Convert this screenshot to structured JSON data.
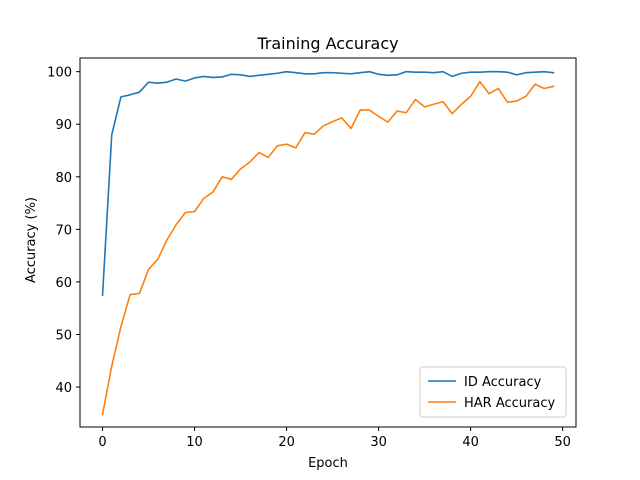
{
  "chart_data": {
    "type": "line",
    "title": "Training Accuracy",
    "xlabel": "Epoch",
    "ylabel": "Accuracy (%)",
    "xlim": [
      -2.45,
      51.45
    ],
    "ylim": [
      32.4,
      102.6
    ],
    "xticks": [
      0,
      10,
      20,
      30,
      40,
      50
    ],
    "yticks": [
      40,
      50,
      60,
      70,
      80,
      90,
      100
    ],
    "grid": false,
    "legend": "lower-right",
    "x": [
      0,
      1,
      2,
      3,
      4,
      5,
      6,
      7,
      8,
      9,
      10,
      11,
      12,
      13,
      14,
      15,
      16,
      17,
      18,
      19,
      20,
      21,
      22,
      23,
      24,
      25,
      26,
      27,
      28,
      29,
      30,
      31,
      32,
      33,
      34,
      35,
      36,
      37,
      38,
      39,
      40,
      41,
      42,
      43,
      44,
      45,
      46,
      47,
      48,
      49
    ],
    "series": [
      {
        "name": "ID Accuracy",
        "color": "#1f77b4",
        "values": [
          57.5,
          88.0,
          95.2,
          95.6,
          96.1,
          98.0,
          97.8,
          98.0,
          98.6,
          98.2,
          98.8,
          99.1,
          98.9,
          99.0,
          99.5,
          99.4,
          99.1,
          99.3,
          99.5,
          99.7,
          100.0,
          99.8,
          99.6,
          99.6,
          99.8,
          99.8,
          99.7,
          99.6,
          99.8,
          100.0,
          99.5,
          99.3,
          99.4,
          100.0,
          99.9,
          99.9,
          99.8,
          100.0,
          99.1,
          99.7,
          99.9,
          99.9,
          100.0,
          100.0,
          99.9,
          99.4,
          99.8,
          99.9,
          100.0,
          99.8
        ]
      },
      {
        "name": "HAR Accuracy",
        "color": "#ff7f0e",
        "values": [
          34.8,
          44.0,
          51.5,
          57.6,
          57.8,
          62.4,
          64.3,
          68.0,
          70.9,
          73.2,
          73.4,
          75.9,
          77.1,
          80.0,
          79.5,
          81.5,
          82.8,
          84.6,
          83.7,
          85.9,
          86.2,
          85.5,
          88.4,
          88.1,
          89.7,
          90.5,
          91.2,
          89.2,
          92.7,
          92.7,
          91.5,
          90.4,
          92.5,
          92.2,
          94.7,
          93.3,
          93.8,
          94.3,
          92.0,
          93.8,
          95.3,
          98.1,
          95.8,
          96.8,
          94.2,
          94.4,
          95.3,
          97.6,
          96.8,
          97.2
        ]
      }
    ]
  }
}
